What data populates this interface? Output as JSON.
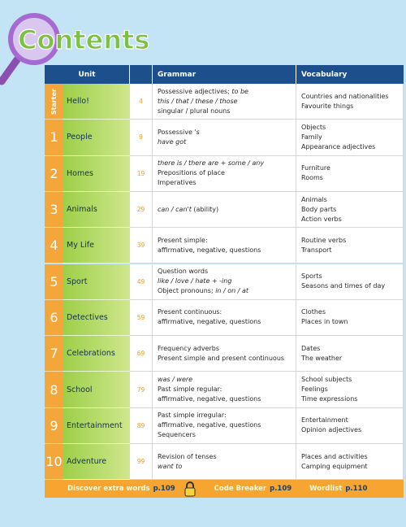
{
  "title": "Contents",
  "header": {
    "unit": "Unit",
    "grammar": "Grammar",
    "vocabulary": "Vocabulary"
  },
  "rows": [
    {
      "number": "Starter",
      "unit": "Hello!",
      "page": "4",
      "grammar": [
        [
          "Possessive adjectives; ",
          {
            "text": "to be",
            "italic": true
          }
        ],
        [
          {
            "text": "this / that / these / those",
            "italic": true
          }
        ],
        [
          "singular / plural nouns"
        ]
      ],
      "vocabulary": [
        "Countries and nationalities",
        "Favourite things"
      ]
    },
    {
      "number": "1",
      "unit": "People",
      "page": "9",
      "grammar": [
        [
          "Possessive ",
          {
            "text": "'s",
            "italic": true
          }
        ],
        [
          {
            "text": "have got",
            "italic": true
          }
        ]
      ],
      "vocabulary": [
        "Objects",
        "Family",
        "Appearance adjectives"
      ]
    },
    {
      "number": "2",
      "unit": "Homes",
      "page": "19",
      "grammar": [
        [
          {
            "text": "there is / there are + some / any",
            "italic": true
          }
        ],
        [
          "Prepositions of place"
        ],
        [
          "Imperatives"
        ]
      ],
      "vocabulary": [
        "Furniture",
        "Rooms"
      ]
    },
    {
      "number": "3",
      "unit": "Animals",
      "page": "29",
      "grammar": [
        [
          {
            "text": "can / can't",
            "italic": true
          },
          " (ability)"
        ]
      ],
      "vocabulary": [
        "Animals",
        "Body parts",
        "Action verbs"
      ]
    },
    {
      "number": "4",
      "unit": "My Life",
      "page": "39",
      "grammar": [
        [
          "Present simple:"
        ],
        [
          "affirmative, negative, questions"
        ]
      ],
      "vocabulary": [
        "Routine verbs",
        "Transport"
      ]
    },
    {
      "number": "5",
      "unit": "Sport",
      "page": "49",
      "grammar": [
        [
          "Question words"
        ],
        [
          {
            "text": "like / love / hate + -ing",
            "italic": true
          }
        ],
        [
          "Object pronouns; ",
          {
            "text": "in / on / at",
            "italic": true
          }
        ]
      ],
      "vocabulary": [
        "Sports",
        "Seasons and times of day"
      ]
    },
    {
      "number": "6",
      "unit": "Detectives",
      "page": "59",
      "grammar": [
        [
          "Present continuous:"
        ],
        [
          "affirmative, negative, questions"
        ]
      ],
      "vocabulary": [
        "Clothes",
        "Places in town"
      ]
    },
    {
      "number": "7",
      "unit": "Celebrations",
      "page": "69",
      "grammar": [
        [
          "Frequency adverbs"
        ],
        [
          "Present simple and present continuous"
        ]
      ],
      "vocabulary": [
        "Dates",
        "The weather"
      ]
    },
    {
      "number": "8",
      "unit": "School",
      "page": "79",
      "grammar": [
        [
          {
            "text": "was / were",
            "italic": true
          }
        ],
        [
          "Past simple regular:"
        ],
        [
          "affirmative, negative, questions"
        ]
      ],
      "vocabulary": [
        "School subjects",
        "Feelings",
        "Time expressions"
      ]
    },
    {
      "number": "9",
      "unit": "Entertainment",
      "page": "89",
      "grammar": [
        [
          "Past simple irregular:"
        ],
        [
          "affirmative, negative, questions"
        ],
        [
          "Sequencers"
        ]
      ],
      "vocabulary": [
        "Entertainment",
        "Opinion adjectives"
      ]
    },
    {
      "number": "10",
      "unit": "Adventure",
      "page": "99",
      "grammar": [
        [
          "Revision of tenses"
        ],
        [
          {
            "text": "want to",
            "italic": true
          }
        ]
      ],
      "vocabulary": [
        "Places and activities",
        "Camping equipment"
      ]
    }
  ],
  "footer": [
    {
      "label": "Discover extra words",
      "page": "p.109"
    },
    {
      "label": "Code Breaker",
      "page": "p.109"
    },
    {
      "label": "Wordlist",
      "page": "p.110"
    }
  ]
}
